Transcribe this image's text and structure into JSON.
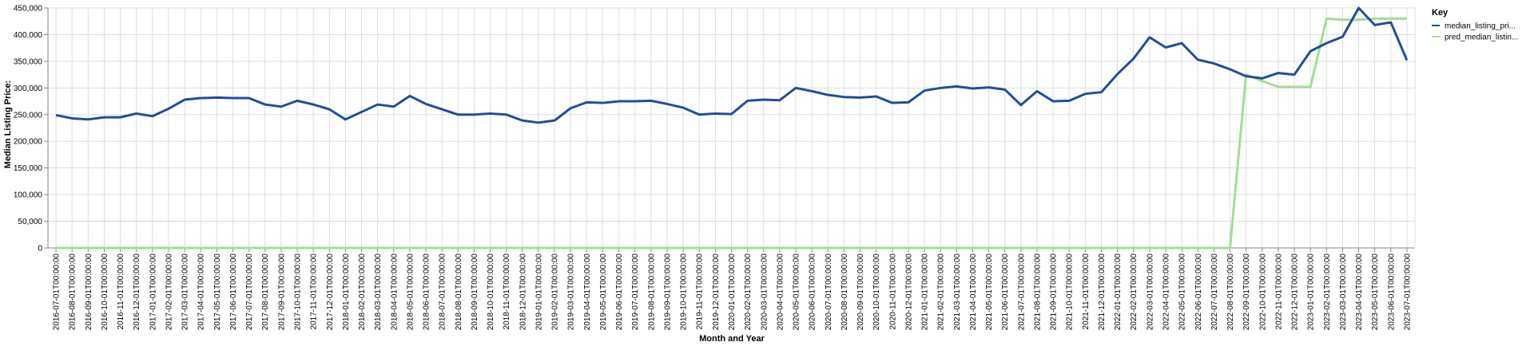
{
  "chart_data": {
    "type": "line",
    "title": "",
    "xlabel": "Month and Year",
    "ylabel": "Median Listing Price:",
    "ylim": [
      0,
      450000
    ],
    "y_ticks": [
      "0",
      "50,000",
      "100,000",
      "150,000",
      "200,000",
      "250,000",
      "300,000",
      "350,000",
      "400,000",
      "450,000"
    ],
    "grid": true,
    "legend": {
      "title": "Key",
      "placement": "right"
    },
    "x": [
      "2016-07-01T00:00:00",
      "2016-08-01T00:00:00",
      "2016-09-01T00:00:00",
      "2016-10-01T00:00:00",
      "2016-11-01T00:00:00",
      "2016-12-01T00:00:00",
      "2017-01-01T00:00:00",
      "2017-02-01T00:00:00",
      "2017-03-01T00:00:00",
      "2017-04-01T00:00:00",
      "2017-05-01T00:00:00",
      "2017-06-01T00:00:00",
      "2017-07-01T00:00:00",
      "2017-08-01T00:00:00",
      "2017-09-01T00:00:00",
      "2017-10-01T00:00:00",
      "2017-11-01T00:00:00",
      "2017-12-01T00:00:00",
      "2018-01-01T00:00:00",
      "2018-02-01T00:00:00",
      "2018-03-01T00:00:00",
      "2018-04-01T00:00:00",
      "2018-05-01T00:00:00",
      "2018-06-01T00:00:00",
      "2018-07-01T00:00:00",
      "2018-08-01T00:00:00",
      "2018-09-01T00:00:00",
      "2018-10-01T00:00:00",
      "2018-11-01T00:00:00",
      "2018-12-01T00:00:00",
      "2019-01-01T00:00:00",
      "2019-02-01T00:00:00",
      "2019-03-01T00:00:00",
      "2019-04-01T00:00:00",
      "2019-05-01T00:00:00",
      "2019-06-01T00:00:00",
      "2019-07-01T00:00:00",
      "2019-08-01T00:00:00",
      "2019-09-01T00:00:00",
      "2019-10-01T00:00:00",
      "2019-11-01T00:00:00",
      "2019-12-01T00:00:00",
      "2020-01-01T00:00:00",
      "2020-02-01T00:00:00",
      "2020-03-01T00:00:00",
      "2020-04-01T00:00:00",
      "2020-05-01T00:00:00",
      "2020-06-01T00:00:00",
      "2020-07-01T00:00:00",
      "2020-08-01T00:00:00",
      "2020-09-01T00:00:00",
      "2020-10-01T00:00:00",
      "2020-11-01T00:00:00",
      "2020-12-01T00:00:00",
      "2021-01-01T00:00:00",
      "2021-02-01T00:00:00",
      "2021-03-01T00:00:00",
      "2021-04-01T00:00:00",
      "2021-05-01T00:00:00",
      "2021-06-01T00:00:00",
      "2021-07-01T00:00:00",
      "2021-08-01T00:00:00",
      "2021-09-01T00:00:00",
      "2021-10-01T00:00:00",
      "2021-11-01T00:00:00",
      "2021-12-01T00:00:00",
      "2022-01-01T00:00:00",
      "2022-02-01T00:00:00",
      "2022-03-01T00:00:00",
      "2022-04-01T00:00:00",
      "2022-05-01T00:00:00",
      "2022-06-01T00:00:00",
      "2022-07-01T00:00:00",
      "2022-08-01T00:00:00",
      "2022-09-01T00:00:00",
      "2022-10-01T00:00:00",
      "2022-11-01T00:00:00",
      "2022-12-01T00:00:00",
      "2023-01-01T00:00:00",
      "2023-02-01T00:00:00",
      "2023-03-01T00:00:00",
      "2023-04-01T00:00:00",
      "2023-05-01T00:00:00",
      "2023-06-01T00:00:00",
      "2023-07-01T00:00:00"
    ],
    "series": [
      {
        "name": "median_listing_pri...",
        "color": "#1f4e9c",
        "values": [
          249000,
          243000,
          241000,
          245000,
          245000,
          252000,
          247000,
          261000,
          278000,
          281000,
          282000,
          281000,
          281000,
          269000,
          265000,
          276000,
          269000,
          260000,
          241000,
          255000,
          269000,
          265000,
          285000,
          270000,
          260000,
          250000,
          250000,
          252000,
          250000,
          239000,
          235000,
          239000,
          262000,
          273000,
          272000,
          275000,
          275000,
          276000,
          270000,
          263000,
          250000,
          252000,
          251000,
          276000,
          278000,
          277000,
          300000,
          294000,
          287000,
          283000,
          282000,
          284000,
          272000,
          273000,
          295000,
          300000,
          303000,
          299000,
          301000,
          297000,
          268000,
          294000,
          275000,
          276000,
          289000,
          292000,
          326000,
          355000,
          395000,
          376000,
          384000,
          353000,
          346000,
          335000,
          322000,
          318000,
          328000,
          325000,
          369000,
          384000,
          396000,
          450000,
          418000,
          423000,
          352000
        ]
      },
      {
        "name": "pred_median_listin...",
        "color": "#a3dc98",
        "values": [
          0,
          0,
          0,
          0,
          0,
          0,
          0,
          0,
          0,
          0,
          0,
          0,
          0,
          0,
          0,
          0,
          0,
          0,
          0,
          0,
          0,
          0,
          0,
          0,
          0,
          0,
          0,
          0,
          0,
          0,
          0,
          0,
          0,
          0,
          0,
          0,
          0,
          0,
          0,
          0,
          0,
          0,
          0,
          0,
          0,
          0,
          0,
          0,
          0,
          0,
          0,
          0,
          0,
          0,
          0,
          0,
          0,
          0,
          0,
          0,
          0,
          0,
          0,
          0,
          0,
          0,
          0,
          0,
          0,
          0,
          0,
          0,
          0,
          0,
          325000,
          313000,
          302000,
          302000,
          302000,
          430000,
          428000,
          428000,
          430000,
          430000,
          430000
        ]
      }
    ]
  }
}
